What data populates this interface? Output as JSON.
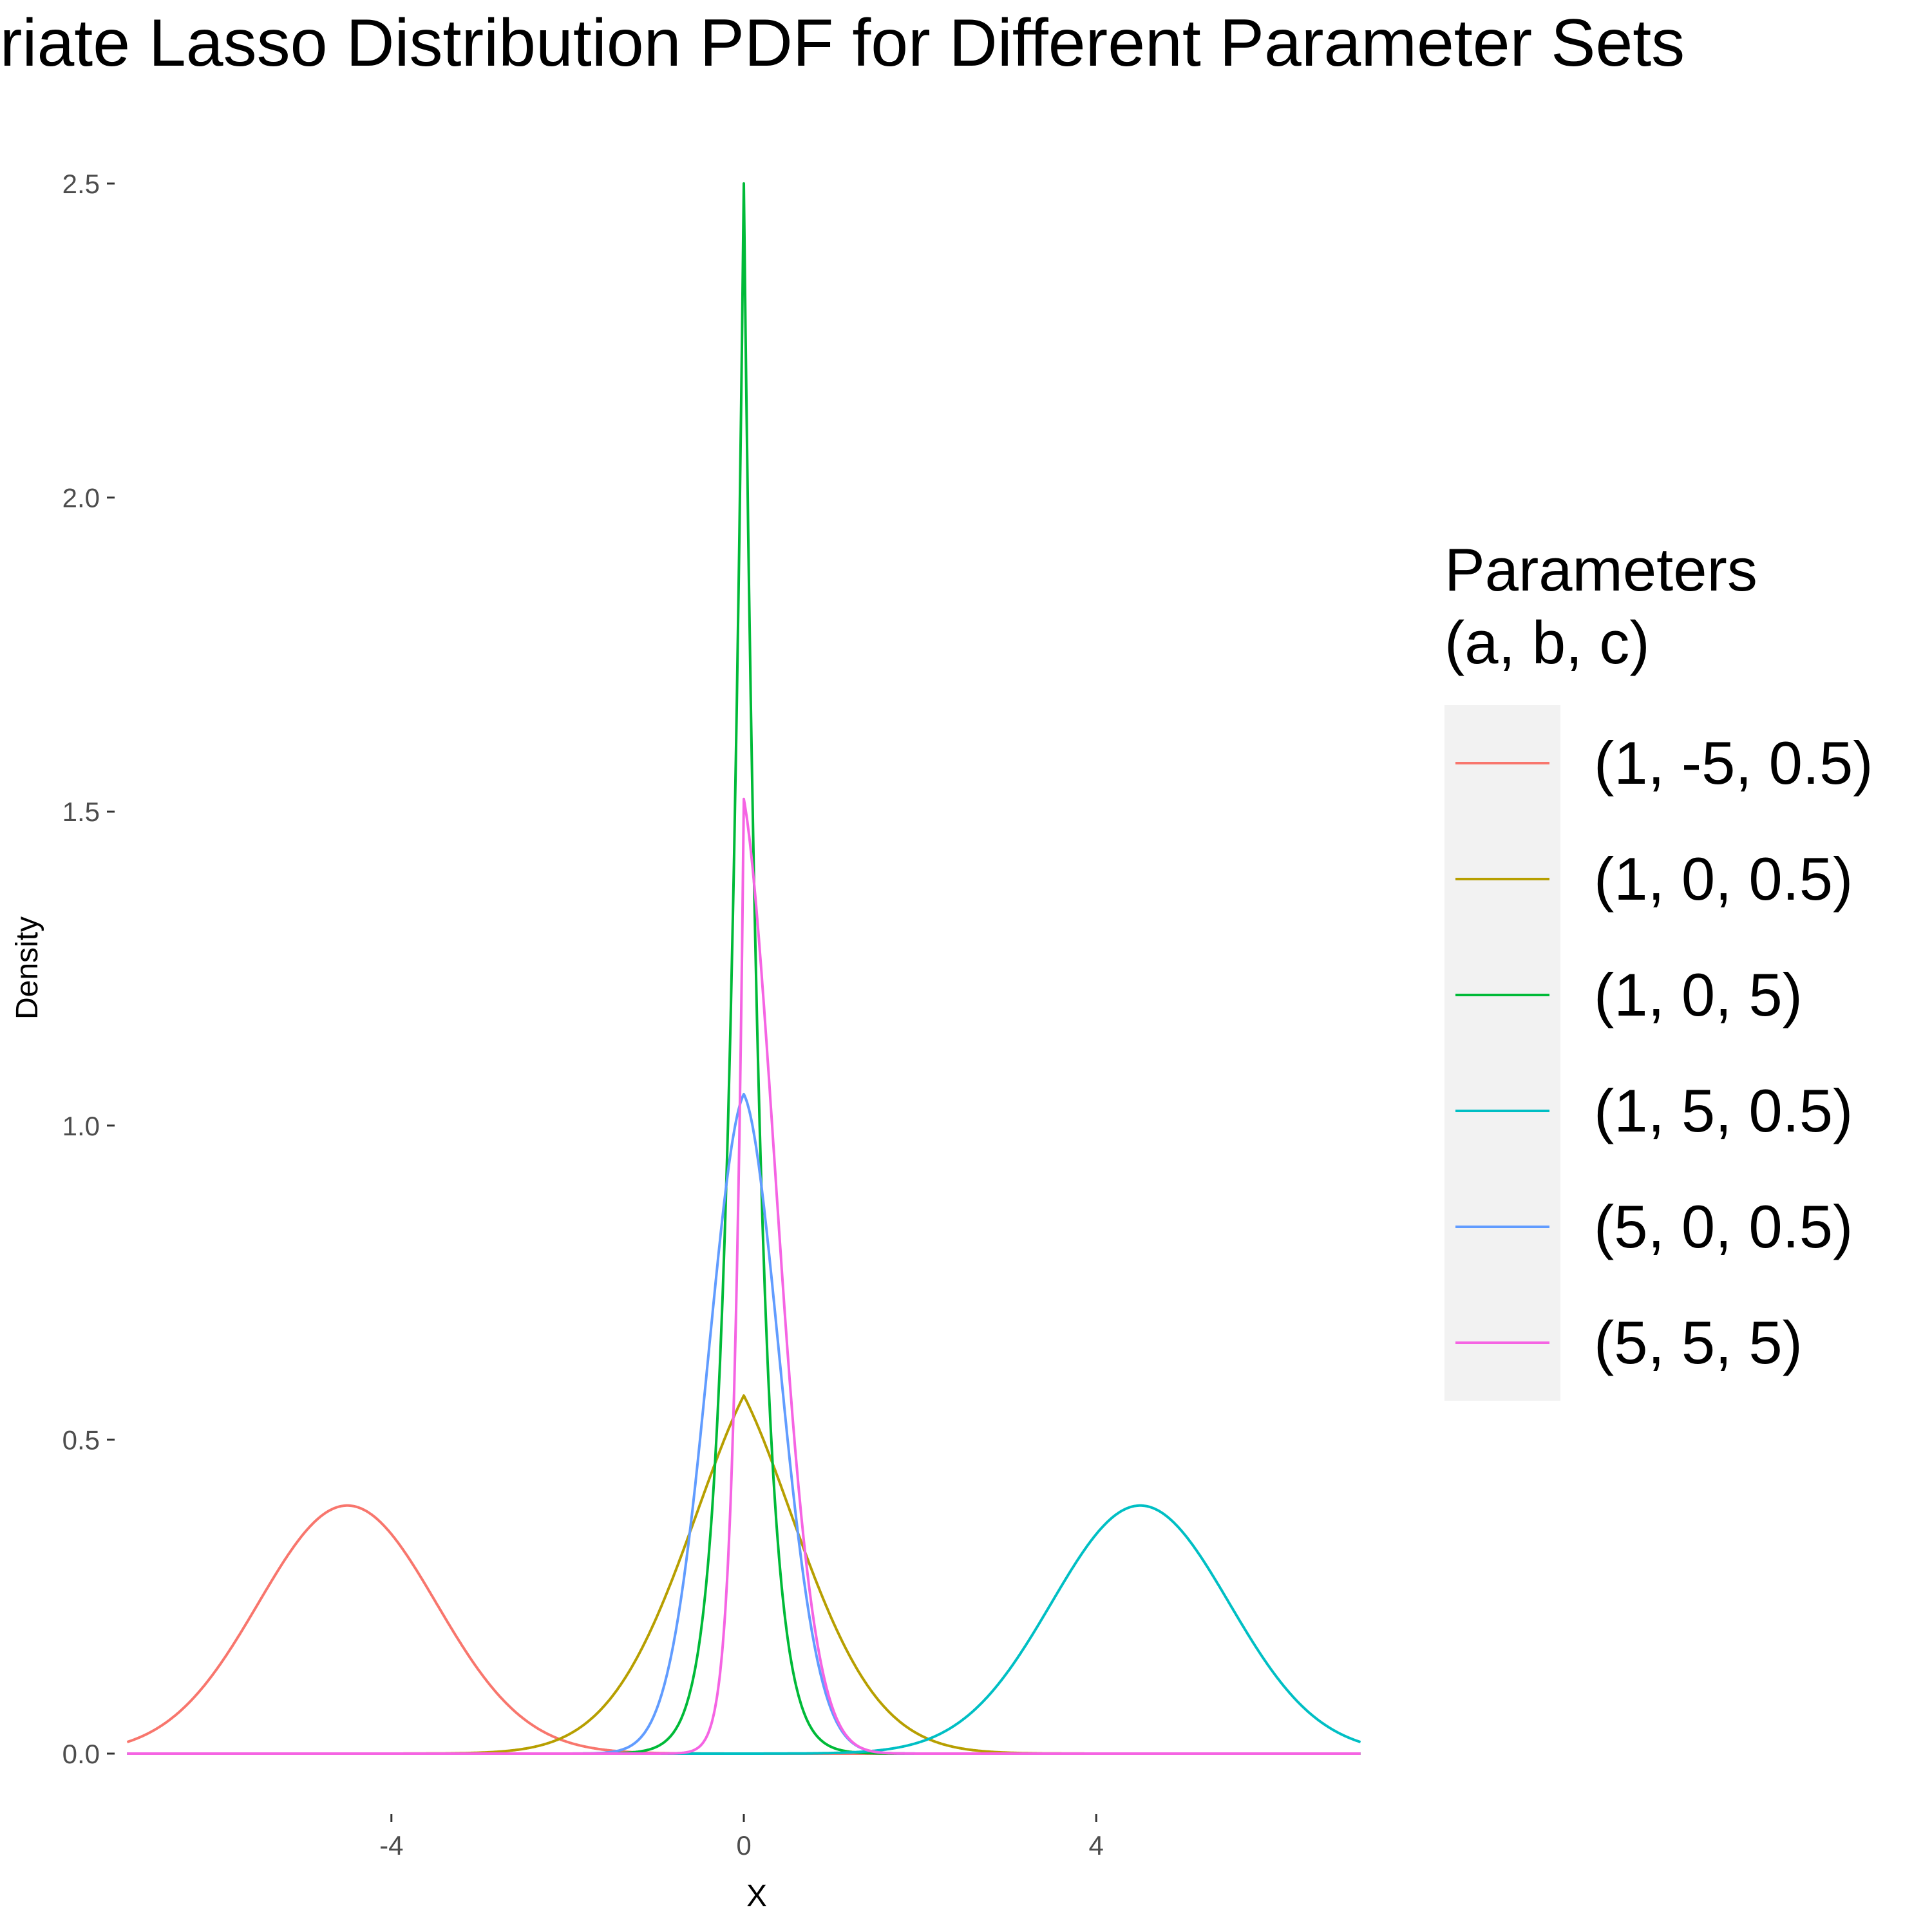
{
  "chart_data": {
    "type": "line",
    "title": "Univariate Lasso Distribution PDF for Different Parameter Sets",
    "xlabel": "X",
    "ylabel": "Density",
    "xlim": [
      -7.2,
      7.2
    ],
    "ylim": [
      -0.1,
      2.6
    ],
    "x_ticks": [
      {
        "value": -4,
        "label": "-4"
      },
      {
        "value": 0,
        "label": "0"
      },
      {
        "value": 4,
        "label": "4"
      }
    ],
    "y_ticks": [
      {
        "value": 0.0,
        "label": "0.0"
      },
      {
        "value": 0.5,
        "label": "0.5"
      },
      {
        "value": 1.0,
        "label": "1.0"
      },
      {
        "value": 1.5,
        "label": "1.5"
      },
      {
        "value": 2.0,
        "label": "2.0"
      },
      {
        "value": 2.5,
        "label": "2.5"
      }
    ],
    "x_range": [
      -7,
      7
    ],
    "grid": false,
    "legend": {
      "title_line1": "Parameters",
      "title_line2": "(a, b, c)",
      "placement": "right"
    },
    "series": [
      {
        "name": "(1, -5, 0.5)",
        "color": "#F8766D",
        "mode": 0,
        "peak": 0.395,
        "params": [
          1,
          -5,
          0.5
        ]
      },
      {
        "name": "(1, 0, 0.5)",
        "color": "#B79F00",
        "mode": 0,
        "peak": 0.57,
        "params": [
          1,
          0,
          0.5
        ]
      },
      {
        "name": "(1, 0, 5)",
        "color": "#00BA38",
        "mode": 0,
        "peak": 2.5,
        "params": [
          1,
          0,
          5
        ]
      },
      {
        "name": "(1, 5, 0.5)",
        "color": "#00BFC4",
        "mode": 0,
        "peak": 0.395,
        "params": [
          1,
          5,
          0.5
        ]
      },
      {
        "name": "(5, 0, 0.5)",
        "color": "#619CFF",
        "mode": 0,
        "peak": 1.05,
        "params": [
          5,
          0,
          0.5
        ]
      },
      {
        "name": "(5, 5, 5)",
        "color": "#F564E3",
        "mode": 0,
        "peak": 1.52,
        "params": [
          5,
          5,
          5
        ]
      }
    ]
  }
}
